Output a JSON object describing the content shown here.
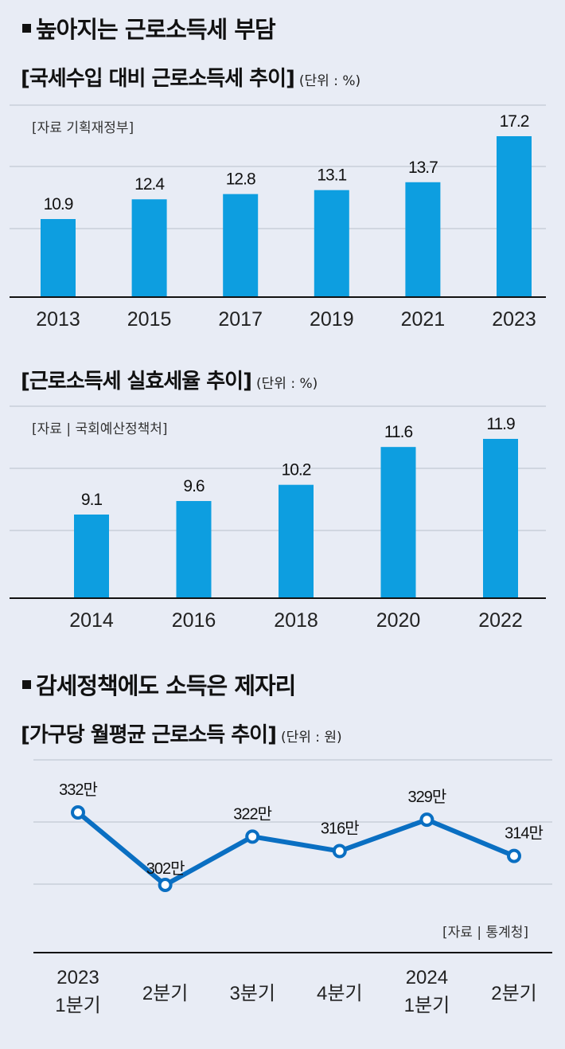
{
  "headline1": "높아지는 근로소득세 부담",
  "headline2": "감세정책에도 소득은 제자리",
  "chart_data": [
    {
      "type": "bar",
      "title": "[국세수입 대비 근로소득세 추이]",
      "unit": "(단위 : %)",
      "source": "[자료 기획재정부]",
      "categories": [
        "2013",
        "2015",
        "2017",
        "2019",
        "2021",
        "2023"
      ],
      "values": [
        10.9,
        12.4,
        12.8,
        13.1,
        13.7,
        17.2
      ],
      "value_labels": [
        "10.9",
        "12.4",
        "12.8",
        "13.1",
        "13.7",
        "17.2"
      ],
      "bar_color": "#0d9ee0",
      "grid": true
    },
    {
      "type": "bar",
      "title": "[근로소득세 실효세율 추이]",
      "unit": "(단위 : %)",
      "source": "[자료 | 국회예산정책처]",
      "categories": [
        "2014",
        "2016",
        "2018",
        "2020",
        "2022"
      ],
      "values": [
        9.1,
        9.6,
        10.2,
        11.6,
        11.9
      ],
      "value_labels": [
        "9.1",
        "9.6",
        "10.2",
        "11.6",
        "11.9"
      ],
      "bar_color": "#0d9ee0",
      "grid": true
    },
    {
      "type": "line",
      "title": "[가구당 월평균 근로소득 추이]",
      "unit": "(단위 : 원)",
      "source": "[자료 | 통계청]",
      "categories": [
        [
          "2023",
          "1분기"
        ],
        [
          "2분기"
        ],
        [
          "3분기"
        ],
        [
          "4분기"
        ],
        [
          "2024",
          "1분기"
        ],
        [
          "2분기"
        ]
      ],
      "values": [
        3320000,
        3020000,
        3220000,
        3160000,
        3290000,
        3140000
      ],
      "value_labels": [
        "332만",
        "302만",
        "322만",
        "316만",
        "329만",
        "314만"
      ],
      "line_color": "#0a6fc2",
      "grid": true
    }
  ]
}
